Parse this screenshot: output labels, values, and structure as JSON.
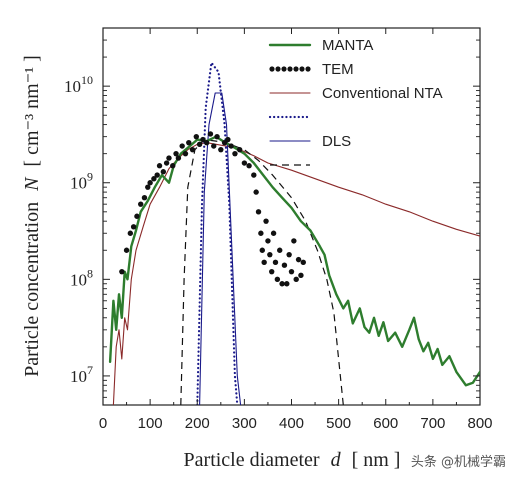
{
  "chart_data": {
    "type": "line",
    "title": "",
    "xlabel_prefix": "Particle diameter",
    "xlabel_var": "d",
    "xlabel_unit": "[ nm ]",
    "ylabel_prefix": "Particle concentration",
    "ylabel_var": "N",
    "ylabel_unit": "[ cm⁻³ nm⁻¹ ]",
    "xlim": [
      0,
      800
    ],
    "ylim": [
      5000000.0,
      40000000000.0
    ],
    "y_scale": "log",
    "x_ticks": [
      0,
      100,
      200,
      300,
      400,
      500,
      600,
      700,
      800
    ],
    "y_ticks": [
      {
        "value": 10000000.0,
        "base": "10",
        "exp": "7"
      },
      {
        "value": 100000000.0,
        "base": "10",
        "exp": "8"
      },
      {
        "value": 1000000000.0,
        "base": "10",
        "exp": "9"
      },
      {
        "value": 10000000000.0,
        "base": "10",
        "exp": "10"
      }
    ],
    "legend_position": "top-right",
    "grid": false,
    "series": [
      {
        "name": "MANTA",
        "color": "#2e7d2e",
        "style": "solid",
        "points": [
          [
            15,
            14000000.0
          ],
          [
            22,
            60000000.0
          ],
          [
            28,
            30000000.0
          ],
          [
            34,
            70000000.0
          ],
          [
            40,
            40000000.0
          ],
          [
            46,
            120000000.0
          ],
          [
            52,
            100000000.0
          ],
          [
            60,
            220000000.0
          ],
          [
            70,
            320000000.0
          ],
          [
            80,
            500000000.0
          ],
          [
            95,
            650000000.0
          ],
          [
            110,
            900000000.0
          ],
          [
            125,
            1200000000.0
          ],
          [
            140,
            1000000000.0
          ],
          [
            150,
            1500000000.0
          ],
          [
            165,
            2000000000.0
          ],
          [
            180,
            2300000000.0
          ],
          [
            200,
            2800000000.0
          ],
          [
            220,
            2700000000.0
          ],
          [
            240,
            3000000000.0
          ],
          [
            260,
            2600000000.0
          ],
          [
            280,
            2300000000.0
          ],
          [
            300,
            2000000000.0
          ],
          [
            320,
            1600000000.0
          ],
          [
            340,
            1200000000.0
          ],
          [
            360,
            900000000.0
          ],
          [
            380,
            700000000.0
          ],
          [
            400,
            550000000.0
          ],
          [
            420,
            400000000.0
          ],
          [
            440,
            320000000.0
          ],
          [
            460,
            220000000.0
          ],
          [
            470,
            180000000.0
          ],
          [
            480,
            110000000.0
          ],
          [
            495,
            70000000.0
          ],
          [
            510,
            50000000.0
          ],
          [
            520,
            60000000.0
          ],
          [
            530,
            35000000.0
          ],
          [
            545,
            50000000.0
          ],
          [
            555,
            32000000.0
          ],
          [
            565,
            28000000.0
          ],
          [
            575,
            40000000.0
          ],
          [
            585,
            26000000.0
          ],
          [
            595,
            36000000.0
          ],
          [
            605,
            23000000.0
          ],
          [
            620,
            28000000.0
          ],
          [
            635,
            20000000.0
          ],
          [
            650,
            30000000.0
          ],
          [
            660,
            40000000.0
          ],
          [
            670,
            24000000.0
          ],
          [
            680,
            18000000.0
          ],
          [
            690,
            22000000.0
          ],
          [
            700,
            15000000.0
          ],
          [
            710,
            19000000.0
          ],
          [
            720,
            13000000.0
          ],
          [
            735,
            16000000.0
          ],
          [
            750,
            11000000.0
          ],
          [
            770,
            8000000.0
          ],
          [
            785,
            8500000.0
          ],
          [
            800,
            11000000.0
          ]
        ]
      },
      {
        "name": "TEM",
        "color": "#111111",
        "style": "dots",
        "points": [
          [
            40,
            120000000.0
          ],
          [
            50,
            200000000.0
          ],
          [
            58,
            300000000.0
          ],
          [
            65,
            350000000.0
          ],
          [
            72,
            450000000.0
          ],
          [
            80,
            600000000.0
          ],
          [
            88,
            700000000.0
          ],
          [
            95,
            900000000.0
          ],
          [
            100,
            1000000000.0
          ],
          [
            108,
            1100000000.0
          ],
          [
            115,
            1200000000.0
          ],
          [
            120,
            1500000000.0
          ],
          [
            128,
            1300000000.0
          ],
          [
            135,
            1600000000.0
          ],
          [
            140,
            1800000000.0
          ],
          [
            148,
            1500000000.0
          ],
          [
            155,
            2000000000.0
          ],
          [
            160,
            1800000000.0
          ],
          [
            168,
            2400000000.0
          ],
          [
            175,
            2000000000.0
          ],
          [
            182,
            2600000000.0
          ],
          [
            190,
            2200000000.0
          ],
          [
            198,
            3000000000.0
          ],
          [
            205,
            2500000000.0
          ],
          [
            212,
            2800000000.0
          ],
          [
            220,
            2600000000.0
          ],
          [
            228,
            3200000000.0
          ],
          [
            235,
            2400000000.0
          ],
          [
            242,
            3000000000.0
          ],
          [
            250,
            2200000000.0
          ],
          [
            258,
            2600000000.0
          ],
          [
            265,
            2800000000.0
          ],
          [
            272,
            2400000000.0
          ],
          [
            280,
            2000000000.0
          ],
          [
            290,
            2200000000.0
          ],
          [
            300,
            1600000000.0
          ],
          [
            310,
            1500000000.0
          ],
          [
            320,
            1200000000.0
          ],
          [
            325,
            800000000.0
          ],
          [
            330,
            500000000.0
          ],
          [
            335,
            300000000.0
          ],
          [
            338,
            200000000.0
          ],
          [
            342,
            150000000.0
          ],
          [
            346,
            400000000.0
          ],
          [
            350,
            250000000.0
          ],
          [
            354,
            180000000.0
          ],
          [
            358,
            120000000.0
          ],
          [
            362,
            300000000.0
          ],
          [
            366,
            150000000.0
          ],
          [
            370,
            100000000.0
          ],
          [
            375,
            200000000.0
          ],
          [
            380,
            90000000.0
          ],
          [
            385,
            140000000.0
          ],
          [
            390,
            90000000.0
          ],
          [
            395,
            180000000.0
          ],
          [
            400,
            120000000.0
          ],
          [
            405,
            250000000.0
          ],
          [
            410,
            100000000.0
          ],
          [
            415,
            160000000.0
          ],
          [
            420,
            110000000.0
          ],
          [
            425,
            150000000.0
          ]
        ]
      },
      {
        "name": "Conventional NTA",
        "color": "#8b2a2a",
        "style": "solid-thin",
        "points": [
          [
            22,
            5000000.0
          ],
          [
            28,
            20000000.0
          ],
          [
            34,
            30000000.0
          ],
          [
            40,
            15000000.0
          ],
          [
            46,
            40000000.0
          ],
          [
            52,
            30000000.0
          ],
          [
            60,
            100000000.0
          ],
          [
            70,
            200000000.0
          ],
          [
            85,
            350000000.0
          ],
          [
            100,
            600000000.0
          ],
          [
            120,
            900000000.0
          ],
          [
            140,
            1400000000.0
          ],
          [
            160,
            1800000000.0
          ],
          [
            180,
            2200000000.0
          ],
          [
            200,
            2500000000.0
          ],
          [
            220,
            2600000000.0
          ],
          [
            240,
            2500000000.0
          ],
          [
            260,
            2400000000.0
          ],
          [
            280,
            2300000000.0
          ],
          [
            300,
            2100000000.0
          ],
          [
            320,
            1900000000.0
          ],
          [
            350,
            1600000000.0
          ],
          [
            400,
            1350000000.0
          ],
          [
            450,
            1100000000.0
          ],
          [
            500,
            900000000.0
          ],
          [
            550,
            750000000.0
          ],
          [
            600,
            600000000.0
          ],
          [
            650,
            500000000.0
          ],
          [
            700,
            400000000.0
          ],
          [
            750,
            330000000.0
          ],
          [
            800,
            280000000.0
          ]
        ]
      },
      {
        "name": "",
        "color": "#1a1a8a",
        "style": "dotted",
        "points": [
          [
            200,
            5000000.0
          ],
          [
            210,
            600000000.0
          ],
          [
            218,
            6000000000.0
          ],
          [
            230,
            17500000000.0
          ],
          [
            245,
            14000000000.0
          ],
          [
            258,
            4000000000.0
          ],
          [
            268,
            600000000.0
          ],
          [
            280,
            10000000.0
          ],
          [
            285,
            5000000.0
          ]
        ]
      },
      {
        "name": "DLS",
        "color": "#1a1a8a",
        "style": "solid-thin",
        "points": [
          [
            205,
            5000000.0
          ],
          [
            215,
            800000000.0
          ],
          [
            225,
            4000000000.0
          ],
          [
            238,
            8500000000.0
          ],
          [
            252,
            8500000000.0
          ],
          [
            262,
            4000000000.0
          ],
          [
            272,
            300000000.0
          ],
          [
            285,
            10000000.0
          ],
          [
            292,
            5000000.0
          ]
        ]
      },
      {
        "name": "",
        "color": "#111111",
        "style": "dashed",
        "points": [
          [
            165,
            5000000.0
          ],
          [
            172,
            100000000.0
          ],
          [
            180,
            900000000.0
          ],
          [
            195,
            2200000000.0
          ],
          [
            215,
            2800000000.0
          ],
          [
            240,
            2700000000.0
          ],
          [
            270,
            2500000000.0
          ],
          [
            300,
            2200000000.0
          ],
          [
            330,
            1700000000.0
          ],
          [
            360,
            1200000000.0
          ],
          [
            400,
            700000000.0
          ],
          [
            430,
            400000000.0
          ],
          [
            455,
            200000000.0
          ],
          [
            475,
            100000000.0
          ],
          [
            490,
            45000000.0
          ],
          [
            500,
            15000000.0
          ],
          [
            510,
            5000000.0
          ]
        ]
      }
    ]
  },
  "watermark": "头条 @机械学霸"
}
